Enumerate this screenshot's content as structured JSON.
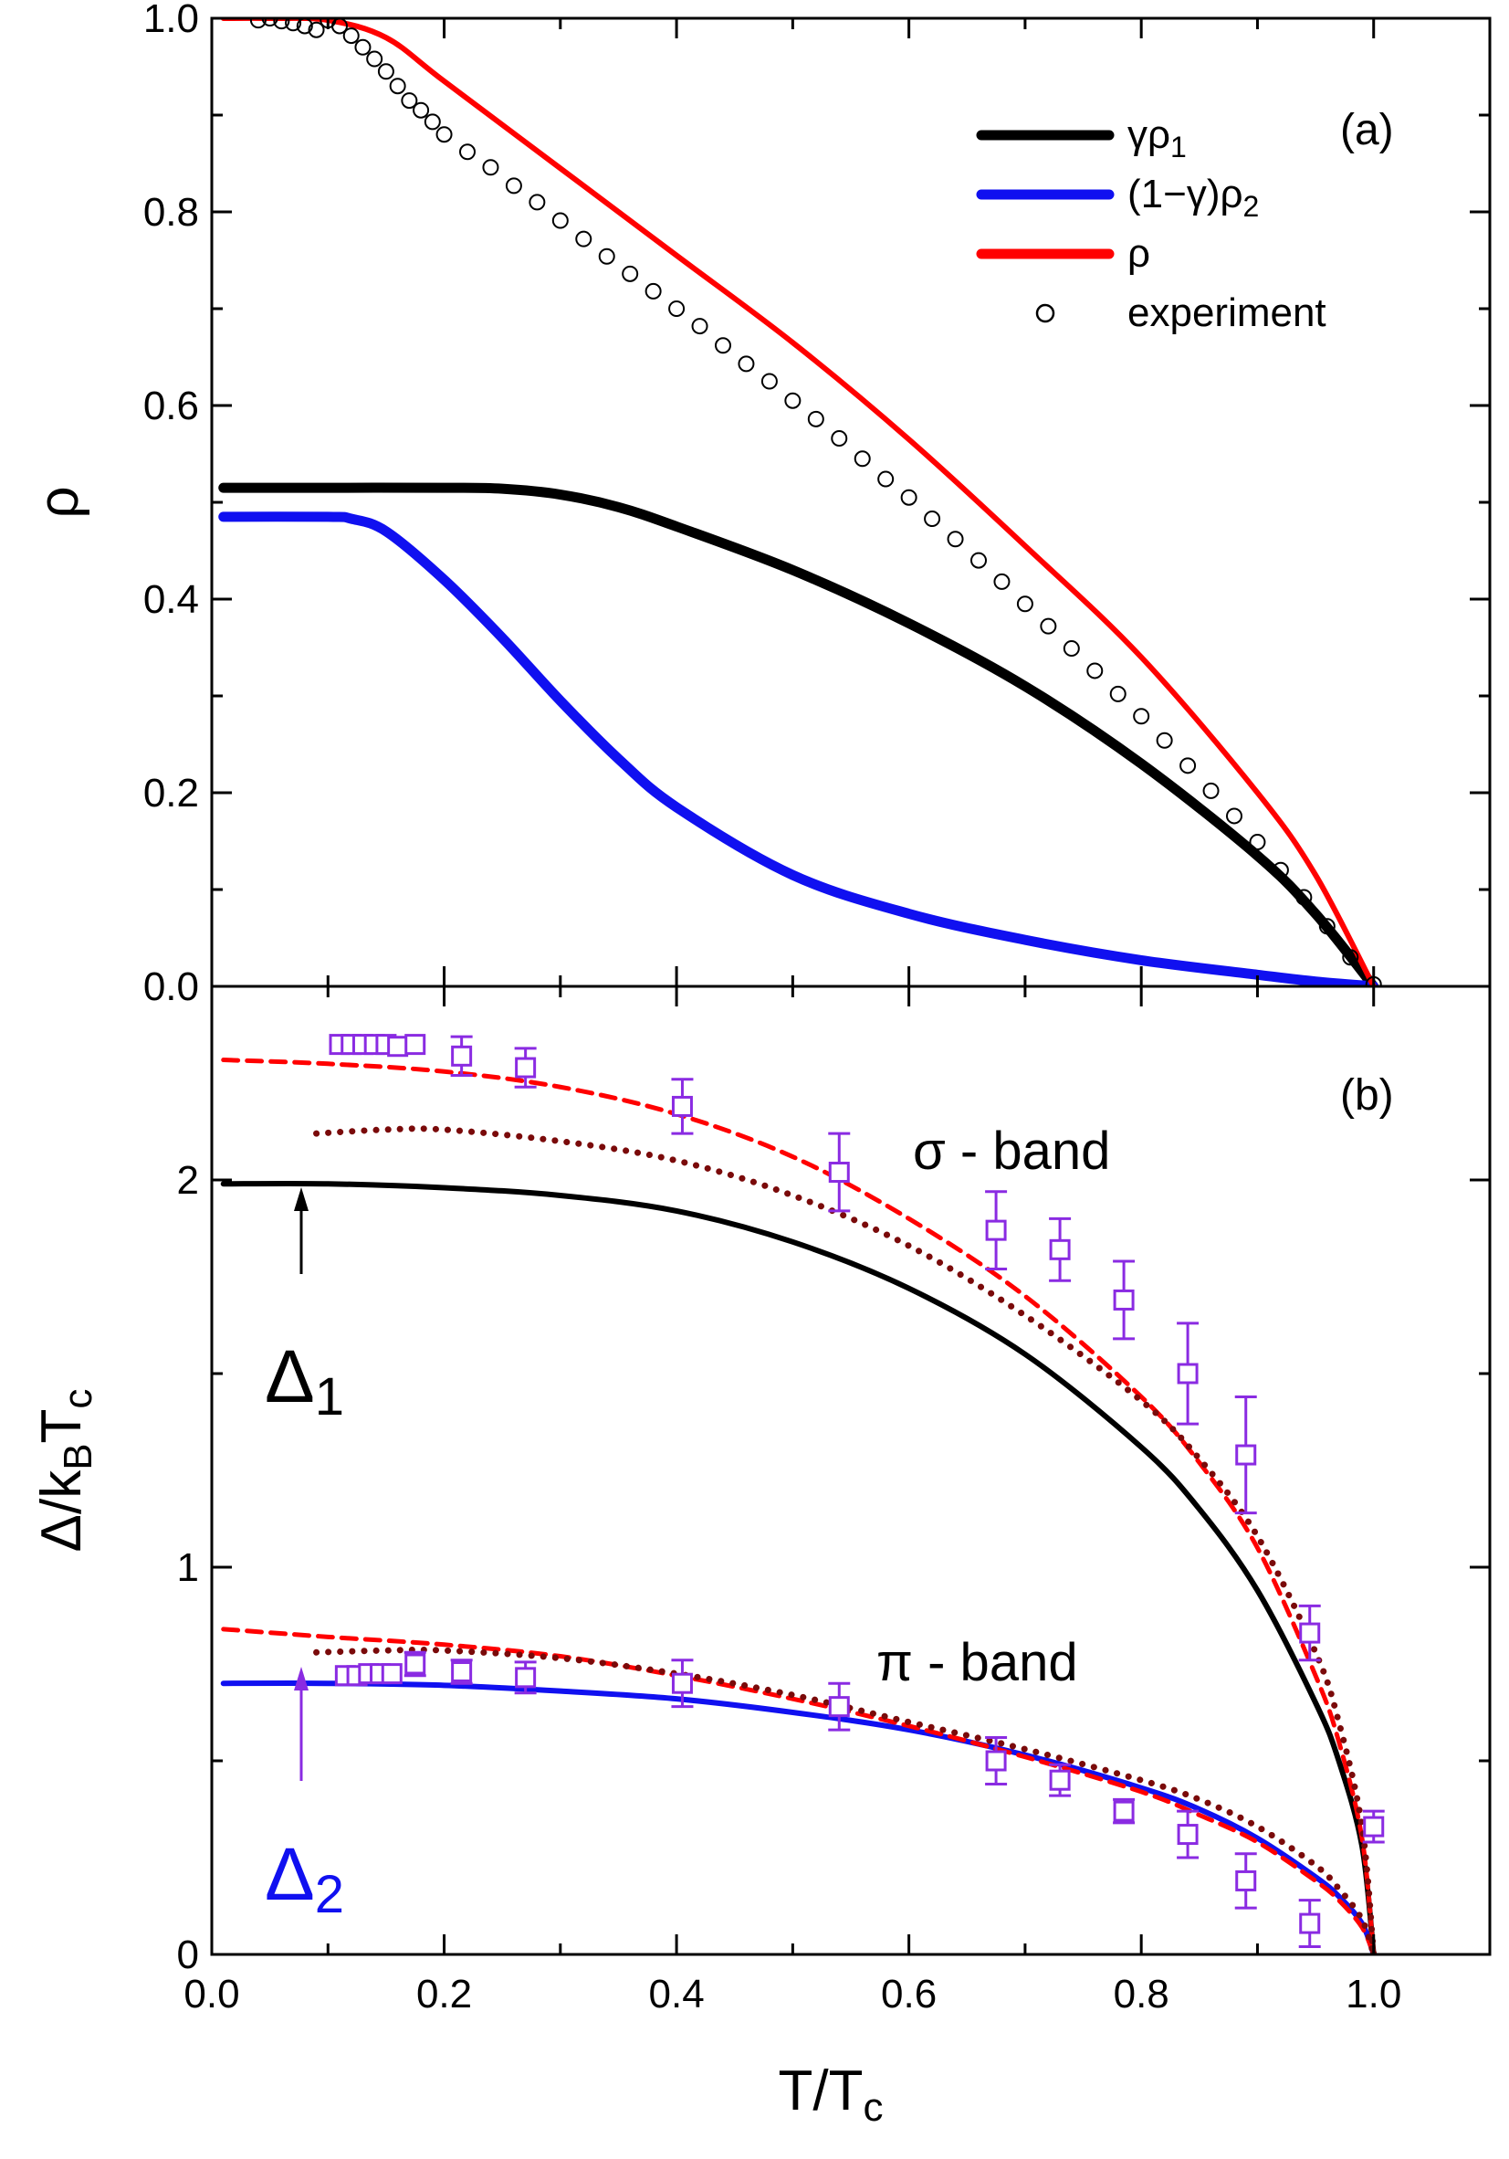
{
  "colors": {
    "black": "#000000",
    "blue": "#1010f0",
    "red": "#ff0000",
    "dark_red": "#7a0a0a",
    "purple": "#8a2be2"
  },
  "chart_data": [
    {
      "id": "panel-a",
      "type": "line",
      "panel_label": "(a)",
      "xlim": [
        0.0,
        1.1
      ],
      "ylim": [
        0.0,
        1.0
      ],
      "ylabel": "ρ",
      "yticks": [
        "0.0",
        "0.2",
        "0.4",
        "0.6",
        "0.8",
        "1.0"
      ],
      "ytick_values": [
        0.0,
        0.2,
        0.4,
        0.6,
        0.8,
        1.0
      ],
      "legend": {
        "placement": "top-right",
        "entries": [
          {
            "label": "γρ",
            "sub": "1",
            "color": "#000000",
            "kind": "line"
          },
          {
            "label": "(1−γ)ρ",
            "sub": "2",
            "color": "#1010f0",
            "kind": "line"
          },
          {
            "label": "ρ",
            "sub": "",
            "color": "#ff0000",
            "kind": "line"
          },
          {
            "label": "experiment",
            "sub": "",
            "color": "#000000",
            "kind": "marker"
          }
        ]
      },
      "series": [
        {
          "name": "γρ1",
          "color": "#000000",
          "style": "solid-thick",
          "x": [
            0.01,
            0.1,
            0.2,
            0.25,
            0.3,
            0.35,
            0.4,
            0.5,
            0.6,
            0.7,
            0.8,
            0.9,
            0.95,
            1.0
          ],
          "y": [
            0.515,
            0.515,
            0.515,
            0.514,
            0.508,
            0.495,
            0.475,
            0.43,
            0.375,
            0.31,
            0.23,
            0.135,
            0.075,
            0.0
          ]
        },
        {
          "name": "(1−γ)ρ2",
          "color": "#1010f0",
          "style": "solid-thick",
          "x": [
            0.01,
            0.1,
            0.12,
            0.15,
            0.2,
            0.25,
            0.3,
            0.35,
            0.4,
            0.5,
            0.6,
            0.7,
            0.8,
            0.9,
            0.95,
            1.0
          ],
          "y": [
            0.485,
            0.485,
            0.483,
            0.47,
            0.42,
            0.36,
            0.295,
            0.235,
            0.185,
            0.115,
            0.075,
            0.048,
            0.027,
            0.012,
            0.005,
            0.0
          ]
        },
        {
          "name": "ρ",
          "color": "#ff0000",
          "style": "solid",
          "x": [
            0.01,
            0.05,
            0.1,
            0.15,
            0.2,
            0.3,
            0.4,
            0.5,
            0.6,
            0.7,
            0.8,
            0.9,
            0.95,
            1.0
          ],
          "y": [
            1.0,
            1.0,
            0.998,
            0.98,
            0.935,
            0.845,
            0.755,
            0.665,
            0.565,
            0.455,
            0.34,
            0.2,
            0.115,
            0.0
          ]
        },
        {
          "name": "experiment",
          "color": "#000000",
          "style": "open-circle",
          "x": [
            0.04,
            0.05,
            0.06,
            0.07,
            0.08,
            0.09,
            0.1,
            0.11,
            0.12,
            0.13,
            0.14,
            0.15,
            0.16,
            0.17,
            0.18,
            0.19,
            0.2,
            0.22,
            0.24,
            0.26,
            0.28,
            0.3,
            0.32,
            0.34,
            0.36,
            0.38,
            0.4,
            0.42,
            0.44,
            0.46,
            0.48,
            0.5,
            0.52,
            0.54,
            0.56,
            0.58,
            0.6,
            0.62,
            0.64,
            0.66,
            0.68,
            0.7,
            0.72,
            0.74,
            0.76,
            0.78,
            0.8,
            0.82,
            0.84,
            0.86,
            0.88,
            0.9,
            0.92,
            0.94,
            0.96,
            0.98,
            1.0
          ],
          "y": [
            0.998,
            1.0,
            0.997,
            0.995,
            0.992,
            0.988,
            0.998,
            0.992,
            0.982,
            0.97,
            0.958,
            0.945,
            0.93,
            0.915,
            0.905,
            0.893,
            0.88,
            0.862,
            0.846,
            0.827,
            0.81,
            0.791,
            0.772,
            0.754,
            0.736,
            0.718,
            0.7,
            0.682,
            0.662,
            0.643,
            0.625,
            0.605,
            0.586,
            0.566,
            0.545,
            0.524,
            0.505,
            0.483,
            0.462,
            0.44,
            0.418,
            0.395,
            0.372,
            0.349,
            0.326,
            0.302,
            0.279,
            0.254,
            0.228,
            0.202,
            0.176,
            0.149,
            0.12,
            0.092,
            0.062,
            0.03,
            0.002
          ]
        }
      ]
    },
    {
      "id": "panel-b",
      "type": "line",
      "panel_label": "(b)",
      "xlim": [
        0.0,
        1.1
      ],
      "ylim": [
        0.0,
        2.5
      ],
      "xlabel": "T/T",
      "xlabel_sub": "c",
      "ylabel": "Δ/k",
      "ylabel_sub1": "B",
      "ylabel_mid": "T",
      "ylabel_sub2": "c",
      "xticks": [
        "0.0",
        "0.2",
        "0.4",
        "0.6",
        "0.8",
        "1.0"
      ],
      "xtick_values": [
        0.0,
        0.2,
        0.4,
        0.6,
        0.8,
        1.0
      ],
      "yticks": [
        "0",
        "1",
        "2"
      ],
      "ytick_values": [
        0,
        1,
        2
      ],
      "annotations": {
        "sigma_band": "σ - band",
        "pi_band": "π - band",
        "delta1": "Δ",
        "delta1_sub": "1",
        "delta2": "Δ",
        "delta2_sub": "2"
      },
      "series": [
        {
          "name": "Δ1",
          "color": "#000000",
          "style": "solid",
          "x": [
            0.01,
            0.1,
            0.2,
            0.3,
            0.4,
            0.5,
            0.6,
            0.7,
            0.8,
            0.85,
            0.9,
            0.95,
            0.97,
            0.99,
            1.0
          ],
          "y": [
            1.99,
            1.99,
            1.98,
            1.96,
            1.92,
            1.84,
            1.72,
            1.55,
            1.31,
            1.15,
            0.94,
            0.65,
            0.5,
            0.28,
            0.0
          ]
        },
        {
          "name": "Δ2",
          "color": "#1010f0",
          "style": "solid",
          "x": [
            0.01,
            0.1,
            0.2,
            0.3,
            0.4,
            0.5,
            0.6,
            0.7,
            0.8,
            0.85,
            0.9,
            0.95,
            0.97,
            0.99,
            1.0
          ],
          "y": [
            0.7,
            0.7,
            0.695,
            0.68,
            0.66,
            0.625,
            0.58,
            0.515,
            0.43,
            0.375,
            0.3,
            0.2,
            0.15,
            0.08,
            0.0
          ]
        },
        {
          "name": "σ-dashed",
          "color": "#ff0000",
          "style": "dashed",
          "x": [
            0.01,
            0.1,
            0.2,
            0.3,
            0.4,
            0.5,
            0.6,
            0.7,
            0.8,
            0.85,
            0.9,
            0.95,
            0.97,
            0.99,
            1.0
          ],
          "y": [
            2.31,
            2.3,
            2.28,
            2.24,
            2.17,
            2.06,
            1.9,
            1.7,
            1.44,
            1.27,
            1.05,
            0.72,
            0.55,
            0.3,
            0.0
          ]
        },
        {
          "name": "π-dashed",
          "color": "#ff0000",
          "style": "dashed",
          "x": [
            0.01,
            0.1,
            0.2,
            0.3,
            0.4,
            0.5,
            0.6,
            0.7,
            0.8,
            0.85,
            0.9,
            0.95,
            0.97,
            0.99,
            1.0
          ],
          "y": [
            0.84,
            0.82,
            0.8,
            0.77,
            0.72,
            0.66,
            0.59,
            0.51,
            0.42,
            0.36,
            0.29,
            0.19,
            0.14,
            0.07,
            0.0
          ]
        },
        {
          "name": "σ-dotted",
          "color": "#7a0a0a",
          "style": "dotted",
          "x": [
            0.09,
            0.15,
            0.2,
            0.3,
            0.4,
            0.5,
            0.6,
            0.7,
            0.8,
            0.85,
            0.9,
            0.95,
            0.97,
            0.99,
            1.0
          ],
          "y": [
            2.12,
            2.13,
            2.13,
            2.1,
            2.05,
            1.96,
            1.83,
            1.65,
            1.43,
            1.28,
            1.08,
            0.78,
            0.6,
            0.33,
            0.0
          ]
        },
        {
          "name": "π-dotted",
          "color": "#7a0a0a",
          "style": "dotted",
          "x": [
            0.09,
            0.15,
            0.2,
            0.3,
            0.4,
            0.5,
            0.6,
            0.7,
            0.8,
            0.85,
            0.9,
            0.95,
            0.97,
            0.99,
            1.0
          ],
          "y": [
            0.78,
            0.785,
            0.785,
            0.765,
            0.725,
            0.67,
            0.6,
            0.53,
            0.45,
            0.4,
            0.33,
            0.23,
            0.17,
            0.09,
            0.0
          ]
        },
        {
          "name": "σ-data",
          "color": "#8a2be2",
          "style": "open-square",
          "x": [
            0.11,
            0.12,
            0.13,
            0.14,
            0.15,
            0.16,
            0.175,
            0.215,
            0.27,
            0.405,
            0.54,
            0.675,
            0.73,
            0.785,
            0.84,
            0.89,
            0.945
          ],
          "y": [
            2.35,
            2.35,
            2.35,
            2.35,
            2.35,
            2.345,
            2.35,
            2.32,
            2.29,
            2.19,
            2.02,
            1.87,
            1.82,
            1.69,
            1.5,
            1.29,
            0.83
          ],
          "err": [
            0,
            0,
            0,
            0,
            0,
            0,
            0,
            0.05,
            0.05,
            0.07,
            0.1,
            0.1,
            0.08,
            0.1,
            0.13,
            0.15,
            0.07
          ]
        },
        {
          "name": "π-data",
          "color": "#8a2be2",
          "style": "open-square",
          "x": [
            0.115,
            0.125,
            0.135,
            0.145,
            0.155,
            0.175,
            0.215,
            0.27,
            0.405,
            0.54,
            0.675,
            0.73,
            0.785,
            0.84,
            0.89,
            0.945,
            1.0
          ],
          "y": [
            0.72,
            0.72,
            0.725,
            0.725,
            0.725,
            0.75,
            0.73,
            0.715,
            0.7,
            0.64,
            0.5,
            0.45,
            0.37,
            0.31,
            0.19,
            0.08,
            0.33
          ],
          "err": [
            0,
            0,
            0,
            0,
            0,
            0.03,
            0.03,
            0.04,
            0.06,
            0.06,
            0.06,
            0.04,
            0.03,
            0.06,
            0.07,
            0.06,
            0.04
          ]
        }
      ]
    }
  ]
}
